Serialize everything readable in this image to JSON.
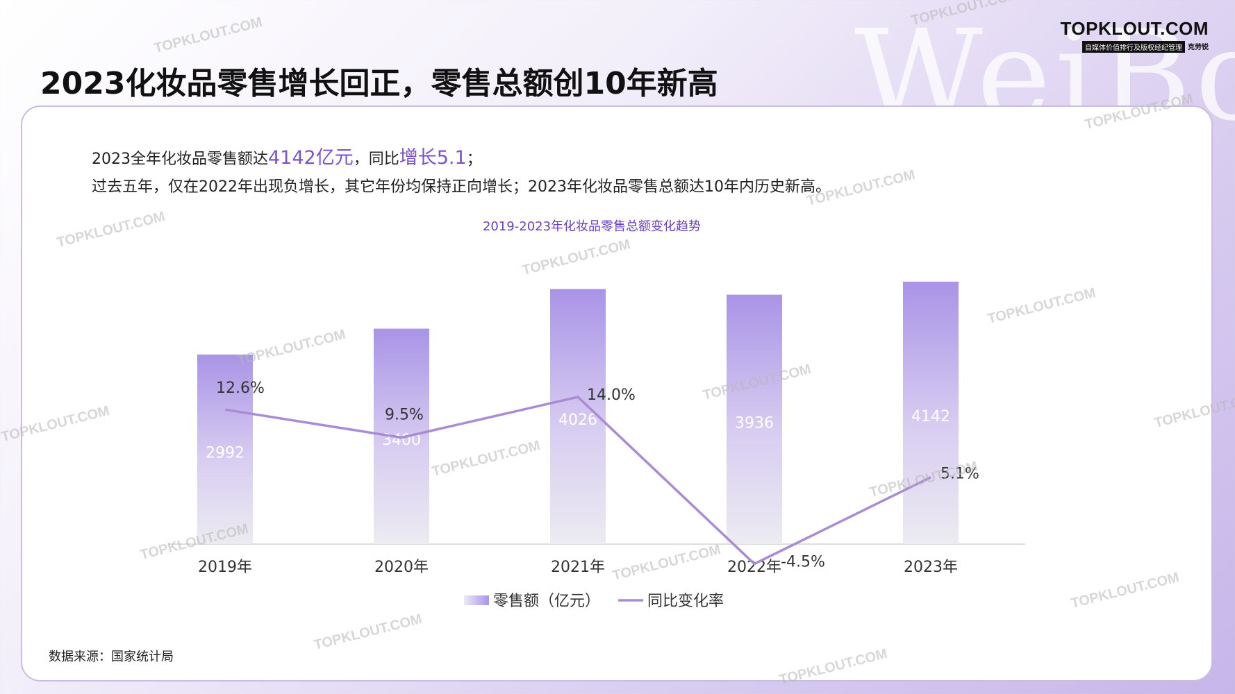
{
  "page": {
    "title": "2023化妆品零售增长回正，零售总额创10年新高",
    "background_word": "WeiBo",
    "brand": {
      "name": "TOPKLOUT.COM",
      "tagline": "自媒体价值排行及版权经纪管理",
      "cn_name": "克劳锐"
    },
    "watermark": "TOPKLOUT.COM",
    "accent_color": "#7a52d1"
  },
  "summary": {
    "line1_prefix": "2023全年化妆品零售额达",
    "line1_value": "4142亿元",
    "line1_middle": "，同比",
    "line1_growth": "增长5.1",
    "line1_suffix": "；",
    "line2": "过去五年，仅在2022年出现负增长，其它年份均保持正向增长；2023年化妆品零售总额达10年内历史新高。"
  },
  "chart_data": {
    "type": "bar",
    "title": "2019-2023年化妆品零售总额变化趋势",
    "categories": [
      "2019年",
      "2020年",
      "2021年",
      "2022年",
      "2023年"
    ],
    "series": [
      {
        "name": "零售额（亿元）",
        "type": "bar",
        "values": [
          2992,
          3400,
          4026,
          3936,
          4142
        ],
        "labels": [
          "2992",
          "3400",
          "4026",
          "3936",
          "4142"
        ],
        "color": "#a994e6"
      },
      {
        "name": "同比变化率",
        "type": "line",
        "values": [
          12.6,
          9.5,
          14.0,
          -4.5,
          5.1
        ],
        "labels": [
          "12.6%",
          "9.5%",
          "14.0%",
          "-4.5%",
          "5.1%"
        ],
        "color": "#a98bd6"
      }
    ],
    "legend": "bottom",
    "grid": false
  },
  "source": "数据来源：国家统计局"
}
